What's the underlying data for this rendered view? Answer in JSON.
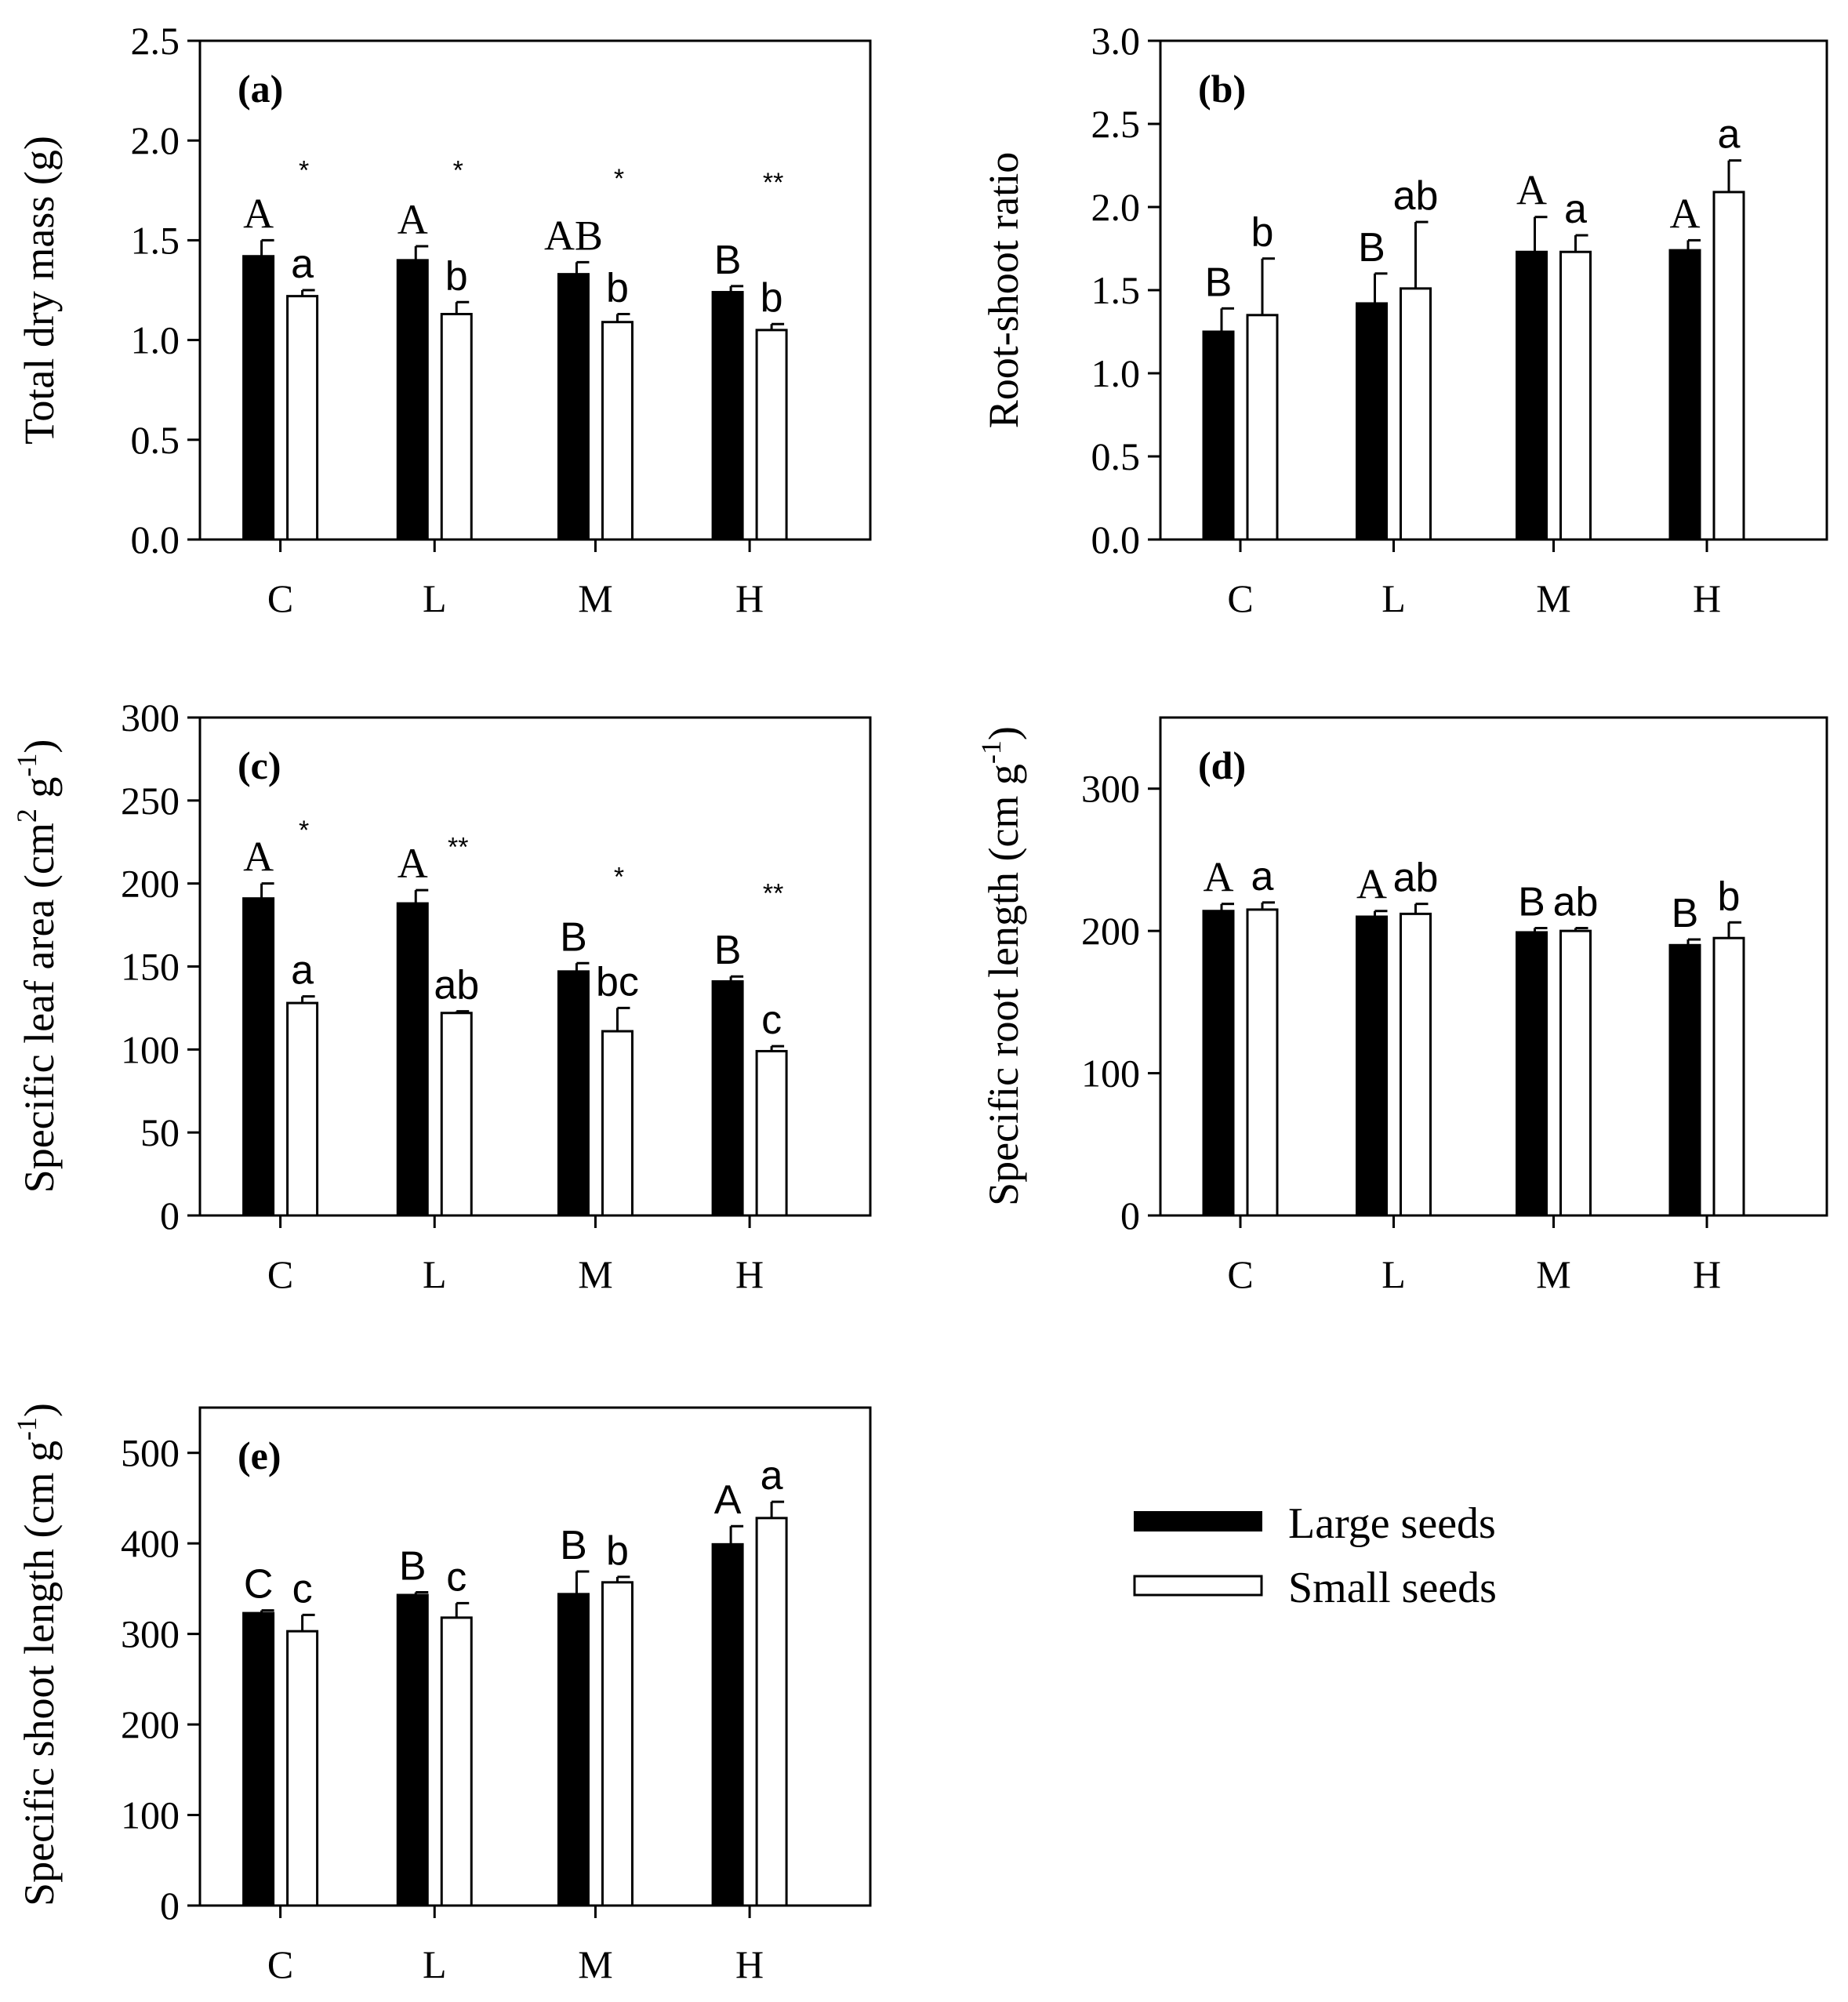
{
  "legend": [
    {
      "label": "Large seeds",
      "fill": "#000000"
    },
    {
      "label": "Small seeds",
      "fill": "#ffffff"
    }
  ],
  "chart_data": [
    {
      "id": "a",
      "type": "bar",
      "panel_label": "(a)",
      "ylabel": "Total dry mass (g)",
      "ylim": [
        0,
        2.5
      ],
      "yticks": [
        "0.0",
        "0.5",
        "1.0",
        "1.5",
        "2.0",
        "2.5"
      ],
      "categories": [
        "C",
        "L",
        "M",
        "H"
      ],
      "series": [
        {
          "name": "Large seeds",
          "values": [
            1.42,
            1.4,
            1.33,
            1.24
          ],
          "errors": [
            0.08,
            0.07,
            0.06,
            0.03
          ],
          "letters": [
            "A",
            "A",
            "AB",
            "B"
          ],
          "letter_font": [
            "serif",
            "serif",
            "serif",
            "sans"
          ]
        },
        {
          "name": "Small seeds",
          "values": [
            1.22,
            1.13,
            1.09,
            1.05
          ],
          "errors": [
            0.03,
            0.06,
            0.04,
            0.03
          ],
          "letters": [
            "a",
            "b",
            "b",
            "b"
          ],
          "letter_font": [
            "sans",
            "sans",
            "sans",
            "sans"
          ]
        }
      ],
      "stars": [
        "*",
        "*",
        "*",
        "**"
      ],
      "star_values": [
        1.9,
        1.9,
        1.86,
        1.84
      ]
    },
    {
      "id": "b",
      "type": "bar",
      "panel_label": "(b)",
      "ylabel": "Root-shoot ratio",
      "ylim": [
        0,
        3.0
      ],
      "yticks": [
        "0.0",
        "0.5",
        "1.0",
        "1.5",
        "2.0",
        "2.5",
        "3.0"
      ],
      "categories": [
        "C",
        "L",
        "M",
        "H"
      ],
      "series": [
        {
          "name": "Large seeds",
          "values": [
            1.25,
            1.42,
            1.73,
            1.74
          ],
          "errors": [
            0.14,
            0.18,
            0.21,
            0.06
          ],
          "letters": [
            "B",
            "B",
            "A",
            "A"
          ],
          "letter_font": [
            "sans",
            "sans",
            "serif",
            "serif"
          ]
        },
        {
          "name": "Small seeds",
          "values": [
            1.35,
            1.51,
            1.73,
            2.09
          ],
          "errors": [
            0.34,
            0.4,
            0.1,
            0.19
          ],
          "letters": [
            "b",
            "ab",
            "a",
            "a"
          ],
          "letter_font": [
            "sans",
            "sans",
            "sans",
            "sans"
          ]
        }
      ],
      "stars": [
        "",
        "",
        "",
        ""
      ],
      "star_values": [
        0,
        0,
        0,
        0
      ]
    },
    {
      "id": "c",
      "type": "bar",
      "panel_label": "(c)",
      "ylabel": "Specific leaf area (cm",
      "ylabel_sup1": "2",
      "ylabel_mid": " g",
      "ylabel_sup2": "-1",
      "ylabel_end": ")",
      "ylim": [
        0,
        300
      ],
      "yticks": [
        "0",
        "50",
        "100",
        "150",
        "200",
        "250",
        "300"
      ],
      "categories": [
        "C",
        "L",
        "M",
        "H"
      ],
      "series": [
        {
          "name": "Large seeds",
          "values": [
            191,
            188,
            147,
            141
          ],
          "errors": [
            9,
            8,
            5,
            3
          ],
          "letters": [
            "A",
            "A",
            "B",
            "B"
          ],
          "letter_font": [
            "serif",
            "serif",
            "sans",
            "sans"
          ]
        },
        {
          "name": "Small seeds",
          "values": [
            128,
            122,
            111,
            99
          ],
          "errors": [
            4,
            1,
            14,
            3
          ],
          "letters": [
            "a",
            "ab",
            "bc",
            "c"
          ],
          "letter_font": [
            "sans",
            "sans",
            "sans",
            "sans"
          ]
        }
      ],
      "stars": [
        "*",
        "**",
        "*",
        "**"
      ],
      "star_values": [
        238,
        228,
        210,
        200
      ]
    },
    {
      "id": "d",
      "type": "bar",
      "panel_label": "(d)",
      "ylabel": "Specific root length (cm g",
      "ylabel_sup2": "-1",
      "ylabel_end": ")",
      "ylim": [
        0,
        350
      ],
      "yticks": [
        "0",
        "100",
        "200",
        "300"
      ],
      "categories": [
        "C",
        "L",
        "M",
        "H"
      ],
      "series": [
        {
          "name": "Large seeds",
          "values": [
            214,
            210,
            199,
            190
          ],
          "errors": [
            5,
            4,
            3,
            4
          ],
          "letters": [
            "A",
            "A",
            "B",
            "B"
          ],
          "letter_font": [
            "serif",
            "serif",
            "sans",
            "sans"
          ]
        },
        {
          "name": "Small seeds",
          "values": [
            215,
            212,
            200,
            195
          ],
          "errors": [
            5,
            7,
            2,
            11
          ],
          "letters": [
            "a",
            "ab",
            "ab",
            "b"
          ],
          "letter_font": [
            "sans",
            "sans",
            "sans",
            "sans"
          ]
        }
      ],
      "stars": [
        "",
        "",
        "",
        ""
      ],
      "star_values": [
        0,
        0,
        0,
        0
      ]
    },
    {
      "id": "e",
      "type": "bar",
      "panel_label": "(e)",
      "ylabel": "Specific shoot length (cm g",
      "ylabel_sup2": "-1",
      "ylabel_end": ")",
      "ylim": [
        0,
        550
      ],
      "yticks": [
        "0",
        "100",
        "200",
        "300",
        "400",
        "500"
      ],
      "categories": [
        "C",
        "L",
        "M",
        "H"
      ],
      "series": [
        {
          "name": "Large seeds",
          "values": [
            323,
            343,
            344,
            399
          ],
          "errors": [
            3,
            3,
            25,
            20
          ],
          "letters": [
            "C",
            "B",
            "B",
            "A"
          ],
          "letter_font": [
            "sans",
            "sans",
            "sans",
            "sans"
          ]
        },
        {
          "name": "Small seeds",
          "values": [
            303,
            318,
            357,
            428
          ],
          "errors": [
            18,
            16,
            6,
            18
          ],
          "letters": [
            "c",
            "c",
            "b",
            "a"
          ],
          "letter_font": [
            "sans",
            "sans",
            "sans",
            "sans"
          ]
        }
      ],
      "stars": [
        "",
        "",
        "",
        ""
      ],
      "star_values": [
        0,
        0,
        0,
        0
      ]
    }
  ]
}
